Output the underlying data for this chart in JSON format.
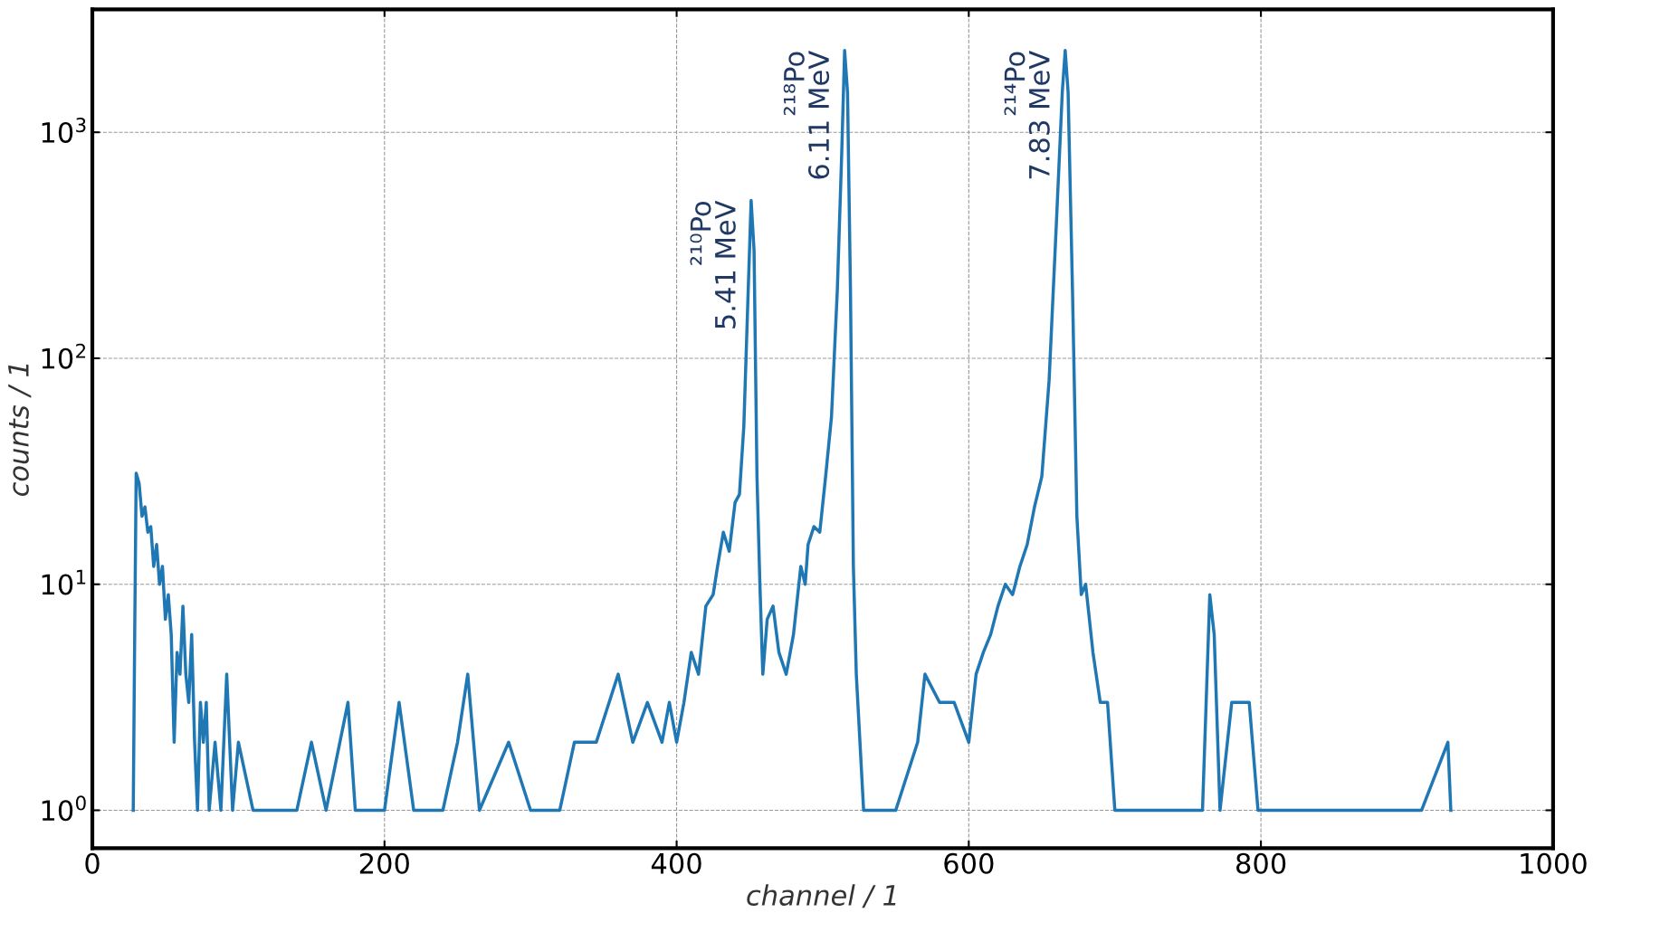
{
  "chart_data": {
    "type": "line",
    "xlabel": "channel / 1",
    "ylabel": "counts / 1",
    "log": "y",
    "grid": true,
    "color": "#1f77b4",
    "xlim": [
      0,
      1000
    ],
    "xticks": [
      0,
      200,
      400,
      600,
      800,
      1000
    ],
    "ylim": [
      0.68,
      3500
    ],
    "yticks": [
      {
        "value": 1,
        "label": "10$^{0}$"
      },
      {
        "value": 10,
        "label": "10$^{1}$"
      },
      {
        "value": 100,
        "label": "10$^{2}$"
      },
      {
        "value": 1000,
        "label": "10$^{3}$"
      }
    ],
    "x": [
      28,
      29,
      30,
      32,
      34,
      36,
      38,
      40,
      42,
      44,
      46,
      48,
      50,
      52,
      54,
      56,
      58,
      60,
      62,
      64,
      66,
      68,
      70,
      72,
      74,
      76,
      78,
      80,
      84,
      88,
      92,
      96,
      100,
      110,
      120,
      130,
      140,
      150,
      160,
      175,
      180,
      200,
      210,
      220,
      240,
      250,
      257,
      265,
      285,
      300,
      320,
      330,
      345,
      360,
      370,
      380,
      390,
      395,
      400,
      405,
      410,
      415,
      420,
      425,
      428,
      432,
      436,
      440,
      443,
      446,
      449,
      451,
      453,
      455,
      457,
      459,
      462,
      466,
      470,
      475,
      480,
      485,
      488,
      490,
      494,
      498,
      502,
      506,
      510,
      513,
      515,
      517,
      519,
      521,
      523,
      528,
      535,
      540,
      550,
      565,
      570,
      580,
      590,
      600,
      605,
      610,
      615,
      620,
      625,
      630,
      635,
      640,
      645,
      650,
      655,
      660,
      664,
      666,
      668,
      671,
      674,
      677,
      680,
      685,
      690,
      695,
      700,
      710,
      720,
      740,
      760,
      765,
      768,
      772,
      780,
      792,
      798,
      810,
      830,
      840,
      910,
      928,
      930
    ],
    "values": [
      1,
      6,
      31,
      28,
      20,
      22,
      17,
      18,
      12,
      15,
      10,
      12,
      7,
      9,
      6,
      2,
      5,
      4,
      8,
      4,
      3,
      6,
      2,
      1,
      3,
      2,
      3,
      1,
      2,
      1,
      4,
      1,
      2,
      1,
      1,
      1,
      1,
      2,
      1,
      3,
      1,
      1,
      3,
      1,
      1,
      2,
      4,
      1,
      2,
      1,
      1,
      2,
      2,
      4,
      2,
      3,
      2,
      3,
      2,
      3,
      5,
      4,
      8,
      9,
      12,
      17,
      14,
      23,
      25,
      50,
      200,
      500,
      300,
      30,
      10,
      4,
      7,
      8,
      5,
      4,
      6,
      12,
      10,
      15,
      18,
      17,
      30,
      55,
      200,
      800,
      2300,
      1500,
      200,
      12,
      4,
      1,
      1,
      1,
      1,
      2,
      4,
      3,
      3,
      2,
      4,
      5,
      6,
      8,
      10,
      9,
      12,
      15,
      22,
      30,
      80,
      400,
      1500,
      2300,
      1500,
      200,
      20,
      9,
      10,
      5,
      3,
      3,
      1,
      1,
      1,
      1,
      1,
      9,
      6,
      1,
      3,
      3,
      1,
      1,
      1,
      1,
      1,
      2,
      1
    ],
    "annotations": [
      {
        "text": "²¹⁰Po\n5.41 MeV",
        "x": 451,
        "y": 500
      },
      {
        "text": "²¹⁸Po\n6.11 MeV",
        "x": 515,
        "y": 2300
      },
      {
        "text": "²¹⁴Po\n7.83 MeV",
        "x": 666,
        "y": 2300
      }
    ]
  }
}
